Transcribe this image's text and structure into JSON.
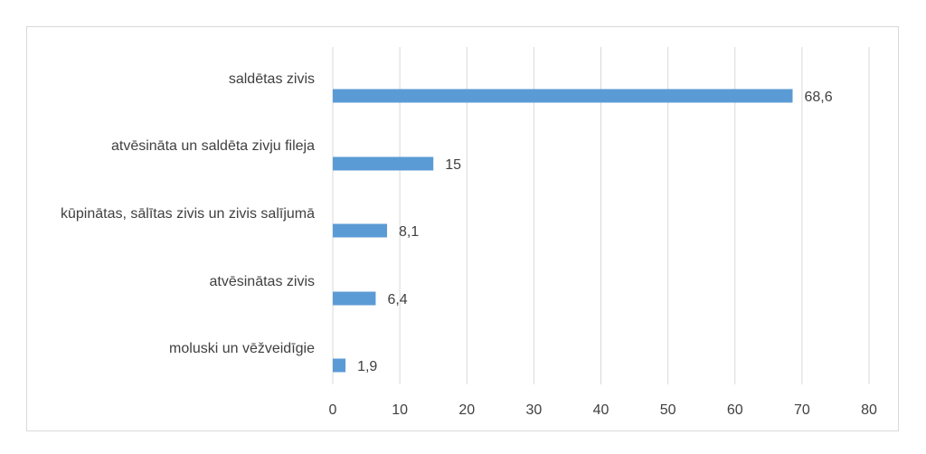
{
  "chart_data": {
    "type": "bar",
    "orientation": "horizontal",
    "categories": [
      "saldētas zivis",
      "atvēsināta un saldēta zivju fileja",
      "kūpinātas, sālītas zivis un zivis salījumā",
      "atvēsinātas zivis",
      "moluski un vēžveidīgie"
    ],
    "values": [
      68.6,
      15,
      8.1,
      6.4,
      1.9
    ],
    "data_labels": [
      "68,6",
      "15",
      "8,1",
      "6,4",
      "1,9"
    ],
    "x_ticks": [
      0,
      10,
      20,
      30,
      40,
      50,
      60,
      70,
      80
    ],
    "x_tick_labels": [
      "0",
      "10",
      "20",
      "30",
      "40",
      "50",
      "60",
      "70",
      "80"
    ],
    "xlim": [
      0,
      80
    ],
    "grid": "vertical",
    "legend": "none",
    "bar_color": "#5b9bd5",
    "grid_color": "#d9d9d9",
    "text_color": "#404040"
  }
}
